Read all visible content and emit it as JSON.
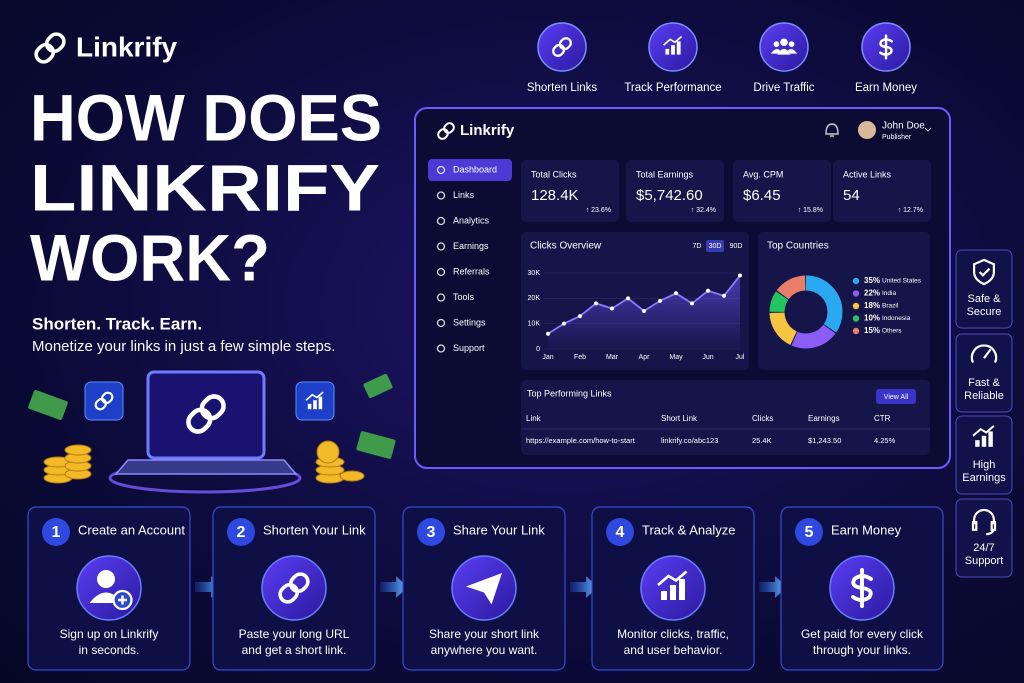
{
  "brand": "Linkrify",
  "headline": [
    "HOW DOES",
    "LINKRIFY",
    "WORK?"
  ],
  "tagline": "Shorten. Track. Earn.",
  "subtitle": "Monetize your links in just a few simple steps.",
  "top_features": [
    "Shorten Links",
    "Track Performance",
    "Drive Traffic",
    "Earn Money"
  ],
  "side_features": [
    [
      "Safe &",
      "Secure"
    ],
    [
      "Fast &",
      "Reliable"
    ],
    [
      "High",
      "Earnings"
    ],
    [
      "24/7",
      "Support"
    ]
  ],
  "dashboard": {
    "brand": "Linkrify",
    "user": "John Doe",
    "role": "Publisher",
    "nav": [
      "Dashboard",
      "Links",
      "Analytics",
      "Earnings",
      "Referrals",
      "Tools",
      "Settings",
      "Support"
    ],
    "stats": [
      {
        "label": "Total Clicks",
        "value": "128.4K",
        "change": "↑ 23.6%"
      },
      {
        "label": "Total Earnings",
        "value": "$5,742.60",
        "change": "↑ 32.4%"
      },
      {
        "label": "Avg. CPM",
        "value": "$6.45",
        "change": "↑ 15.8%"
      },
      {
        "label": "Active Links",
        "value": "54",
        "change": "↑ 12.7%"
      }
    ],
    "chart": {
      "type": "line",
      "title": "Clicks Overview",
      "ranges": [
        "7D",
        "30D",
        "90D"
      ],
      "x": [
        1,
        1.5,
        2,
        2.5,
        3,
        3.5,
        4,
        4.5,
        5,
        5.5,
        6,
        6.5,
        7
      ],
      "values": [
        6000,
        10000,
        13000,
        18000,
        16000,
        20000,
        15000,
        19000,
        22000,
        18000,
        23000,
        21000,
        29000
      ],
      "color": "#8b7bff",
      "xlim": [
        1,
        7
      ],
      "xticks": [
        {
          "value": 1,
          "label": "Jan"
        },
        {
          "value": 2,
          "label": "Feb"
        },
        {
          "value": 3,
          "label": "Mar"
        },
        {
          "value": 4,
          "label": "Apr"
        },
        {
          "value": 5,
          "label": "May"
        },
        {
          "value": 6,
          "label": "Jun"
        },
        {
          "value": 7,
          "label": "Jul"
        }
      ],
      "ylim": [
        0,
        30000
      ],
      "yticks": [
        0,
        {
          "value": 10000,
          "label": "10K"
        },
        {
          "value": 20000,
          "label": "20K"
        },
        {
          "value": 30000,
          "label": "30K"
        }
      ]
    },
    "countries": {
      "type": "pie",
      "title": "Top Countries",
      "names": [
        "United States",
        "India",
        "Brazil",
        "Indonesia",
        "Others"
      ],
      "values": [
        35,
        22,
        18,
        10,
        15
      ],
      "value_labels": [
        "35%",
        "22%",
        "18%",
        "10%",
        "15%"
      ],
      "colors": [
        "#2aa8f0",
        "#8b5cf6",
        "#f5c542",
        "#22c55e",
        "#e87e6a"
      ]
    },
    "table": {
      "title": "Top Performing Links",
      "button": "View All",
      "columns": [
        "Link",
        "Short Link",
        "Clicks",
        "Earnings",
        "CTR"
      ],
      "rows": [
        [
          "https://example.com/how-to-start",
          "linkrify.co/abc123",
          "25.4K",
          "$1,243.50",
          "4.25%"
        ]
      ]
    }
  },
  "steps": [
    {
      "number": 1,
      "title": "Create an Account",
      "lines": [
        "Sign up on Linkrify",
        "in seconds."
      ]
    },
    {
      "number": 2,
      "title": "Shorten Your Link",
      "lines": [
        "Paste your long URL",
        "and get a short link."
      ]
    },
    {
      "number": 3,
      "title": "Share Your Link",
      "lines": [
        "Share your short link",
        "anywhere you want."
      ]
    },
    {
      "number": 4,
      "title": "Track & Analyze",
      "lines": [
        "Monitor clicks, traffic,",
        "and user behavior."
      ]
    },
    {
      "number": 5,
      "title": "Earn Money",
      "lines": [
        "Get paid for every click",
        "through your links."
      ]
    }
  ]
}
